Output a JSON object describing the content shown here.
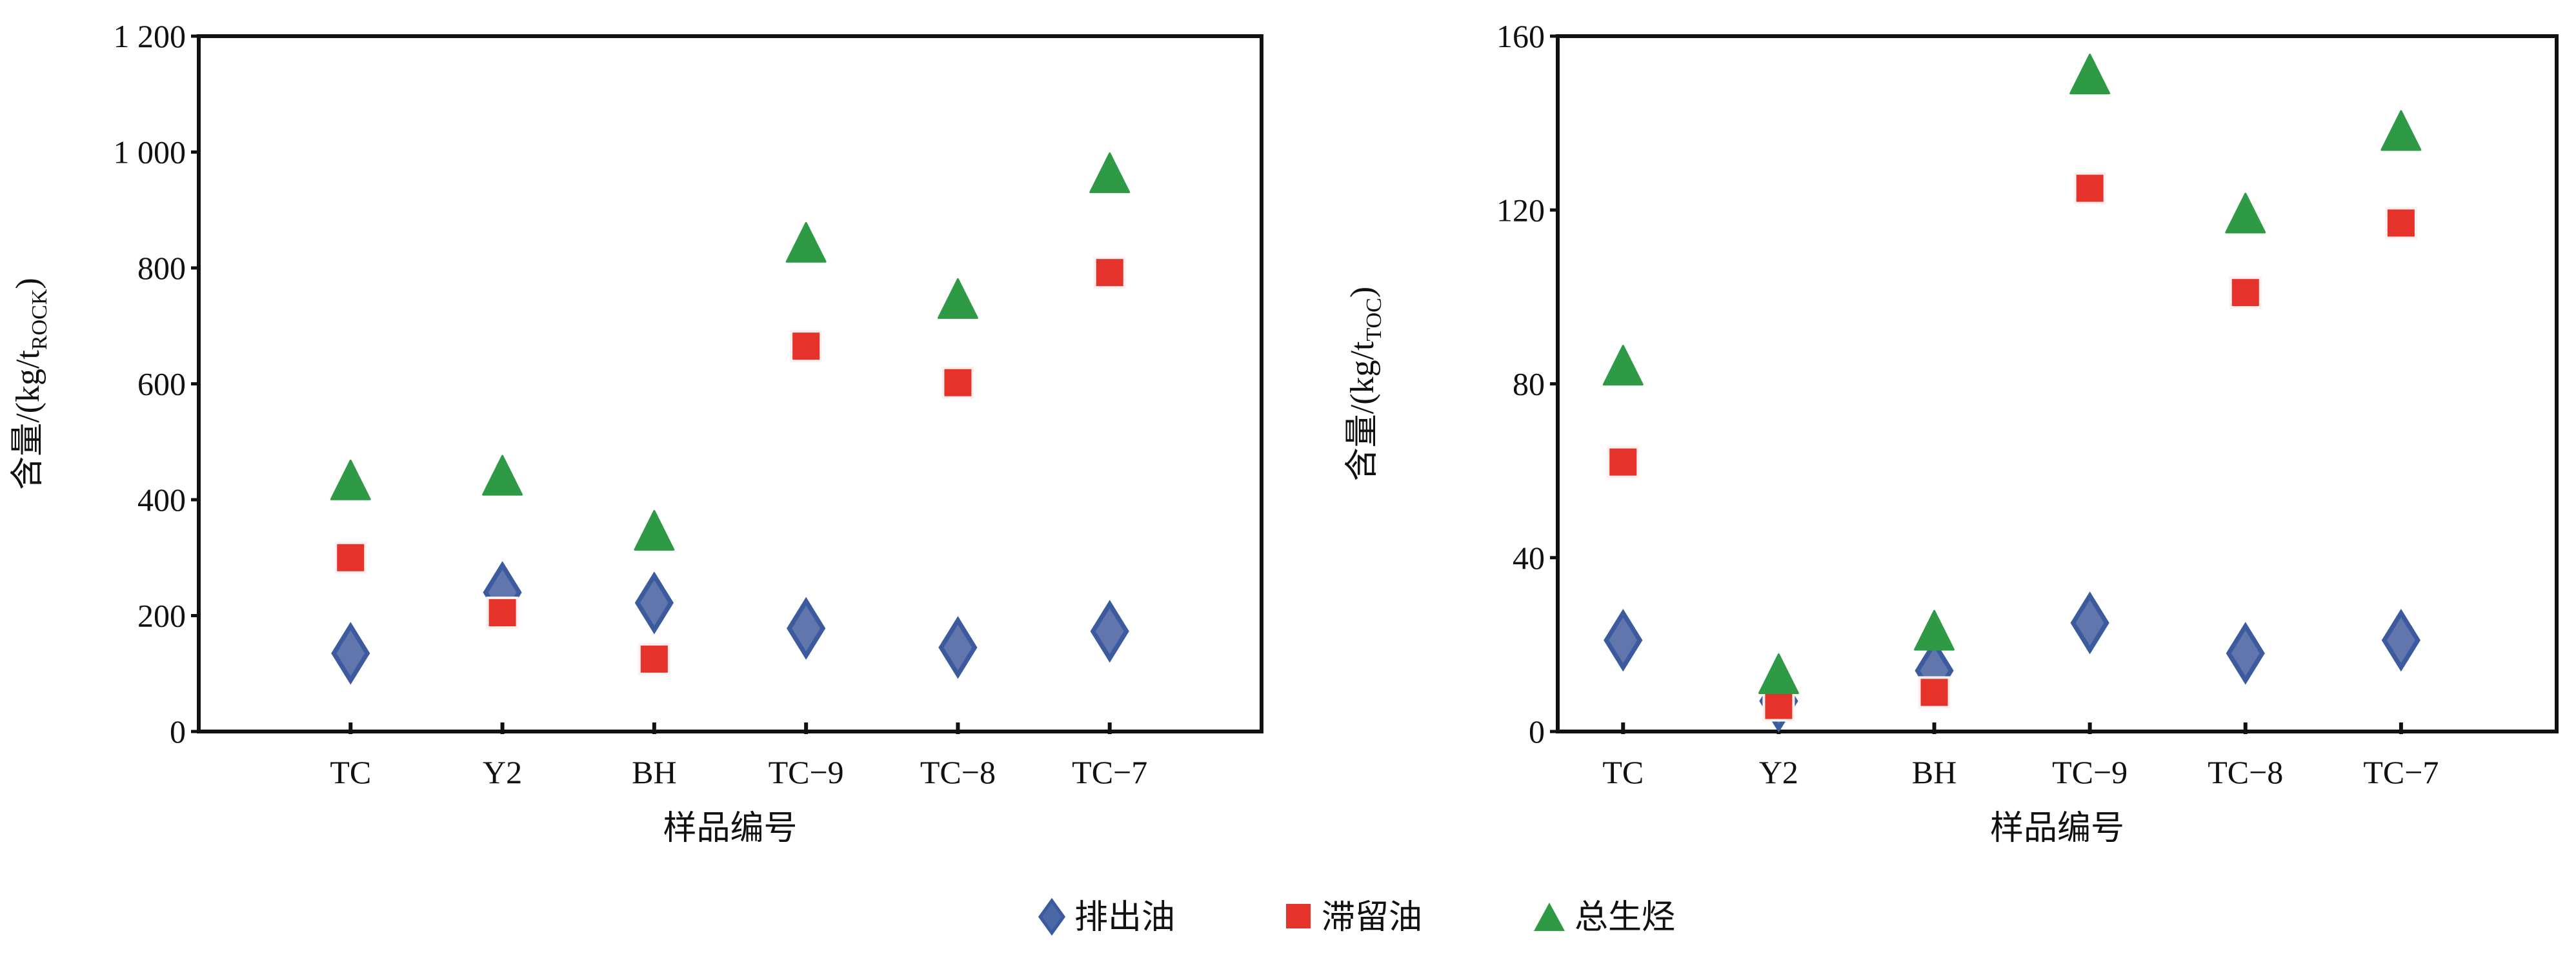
{
  "chart_data": [
    {
      "type": "scatter",
      "categories": [
        "TC",
        "Y2",
        "BH",
        "TC-9",
        "TC-8",
        "TC-7"
      ],
      "xlim": [
        0,
        7
      ],
      "ylim": [
        0,
        1200
      ],
      "yticks": [
        0,
        200,
        400,
        600,
        800,
        1000,
        1200
      ],
      "ytick_labels": [
        "0",
        "200",
        "400",
        "600",
        "800",
        "1 000",
        "1 200"
      ],
      "xtick_labels": [
        "TC",
        "Y2",
        "BH",
        "TC−9",
        "TC−8",
        "TC−7"
      ],
      "xlabel": "样品编号",
      "ylabel": {
        "main": "含量/(kg/t",
        "sub": "ROCK",
        "end": ")"
      },
      "series": [
        {
          "name": "排出油",
          "marker": "diamond",
          "color": "#4a68a6",
          "values": [
            135,
            240,
            222,
            178,
            145,
            173
          ]
        },
        {
          "name": "滞留油",
          "marker": "square",
          "color": "#e5322a",
          "values": [
            300,
            205,
            125,
            665,
            602,
            792
          ]
        },
        {
          "name": "总生烃",
          "marker": "triangle",
          "color": "#2f9a45",
          "values": [
            432,
            440,
            345,
            842,
            745,
            962
          ]
        }
      ]
    },
    {
      "type": "scatter",
      "categories": [
        "TC",
        "Y2",
        "BH",
        "TC-9",
        "TC-8",
        "TC-7"
      ],
      "xlim": [
        0.58,
        7.0
      ],
      "ylim": [
        0,
        160
      ],
      "yticks": [
        0,
        40,
        80,
        120,
        160
      ],
      "ytick_labels": [
        "0",
        "40",
        "80",
        "120",
        "160"
      ],
      "xtick_labels": [
        "TC",
        "Y2",
        "BH",
        "TC−9",
        "TC−8",
        "TC−7"
      ],
      "xlabel": "样品编号",
      "ylabel": {
        "main": "含量/(kg/t",
        "sub": "TOC",
        "end": ")"
      },
      "series": [
        {
          "name": "排出油",
          "marker": "diamond",
          "color": "#4a68a6",
          "values": [
            21,
            7,
            14,
            25,
            18,
            21
          ]
        },
        {
          "name": "滞留油",
          "marker": "square",
          "color": "#e5322a",
          "values": [
            62,
            6,
            9,
            125,
            101,
            117
          ]
        },
        {
          "name": "总生烃",
          "marker": "triangle",
          "color": "#2f9a45",
          "values": [
            84,
            13,
            23,
            151,
            119,
            138
          ]
        }
      ]
    }
  ],
  "legend": {
    "position": "bottom-center",
    "items": [
      {
        "label": "排出油",
        "marker": "diamond",
        "color": "#4a68a6"
      },
      {
        "label": "滞留油",
        "marker": "square",
        "color": "#e5322a"
      },
      {
        "label": "总生烃",
        "marker": "triangle",
        "color": "#2f9a45"
      }
    ]
  }
}
